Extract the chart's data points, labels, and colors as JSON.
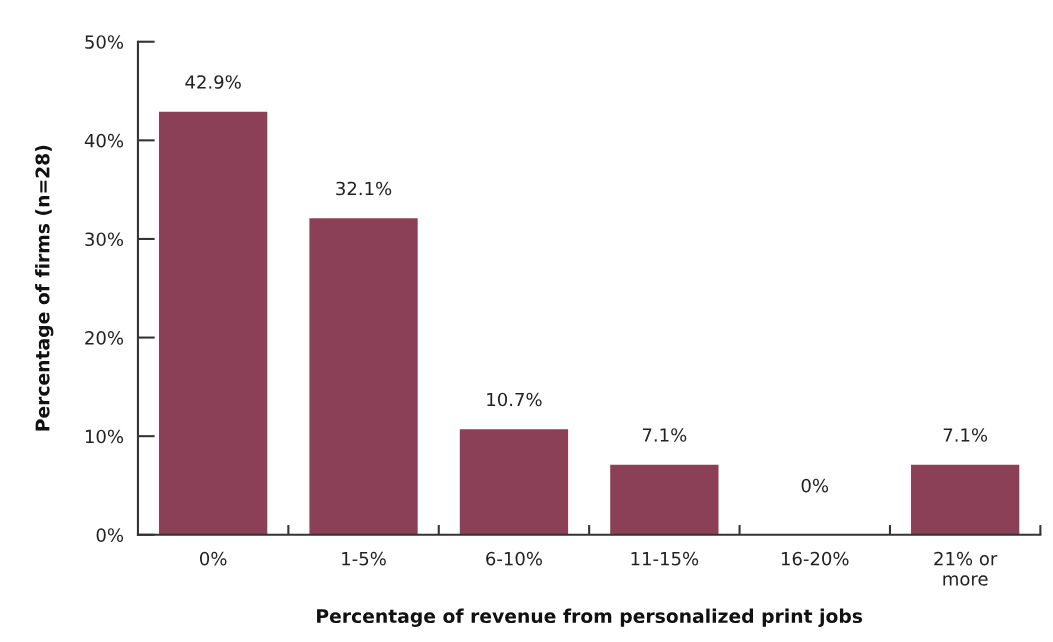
{
  "chart_data": {
    "type": "bar",
    "xlabel": "Percentage of revenue from personalized print jobs",
    "ylabel": "Percentage of firms (n=28)",
    "categories": [
      "0%",
      "1-5%",
      "6-10%",
      "11-15%",
      "16-20%",
      "21% or\nmore"
    ],
    "values": [
      42.9,
      32.1,
      10.7,
      7.1,
      0,
      7.1
    ],
    "color": "#8b4058",
    "value_labels": [
      "42.9%",
      "32.1%",
      "10.7%",
      "7.1%",
      "0%",
      "7.1%"
    ],
    "ylim": [
      0,
      50
    ],
    "yticks": [
      {
        "value": 0,
        "label": "0%"
      },
      {
        "value": 10,
        "label": "10%"
      },
      {
        "value": 20,
        "label": "20%"
      },
      {
        "value": 30,
        "label": "30%"
      },
      {
        "value": 40,
        "label": "40%"
      },
      {
        "value": 50,
        "label": "50%"
      }
    ]
  }
}
